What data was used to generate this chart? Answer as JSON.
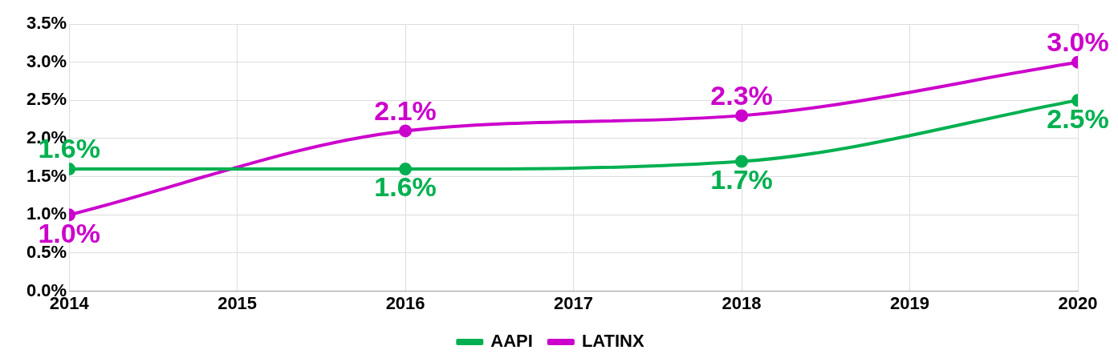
{
  "chart_data": {
    "type": "line",
    "x": [
      2014,
      2016,
      2018,
      2020
    ],
    "xlim": [
      2014,
      2020
    ],
    "xticks": [
      2014,
      2015,
      2016,
      2017,
      2018,
      2019,
      2020
    ],
    "ylim": [
      0,
      3.5
    ],
    "yticks": [
      {
        "value": 0,
        "label": "0.0%"
      },
      {
        "value": 0.5,
        "label": "0.5%"
      },
      {
        "value": 1,
        "label": "1.0%"
      },
      {
        "value": 1.5,
        "label": "1.5%"
      },
      {
        "value": 2,
        "label": "2.0%"
      },
      {
        "value": 2.5,
        "label": "2.5%"
      },
      {
        "value": 3,
        "label": "3.0%"
      },
      {
        "value": 3.5,
        "label": "3.5%"
      }
    ],
    "series": [
      {
        "name": "AAPI",
        "color": "#00b050",
        "values": [
          1.6,
          1.6,
          1.7,
          2.5
        ],
        "value_labels": [
          "1.6%",
          "1.6%",
          "1.7%",
          "2.5%"
        ]
      },
      {
        "name": "LATINX",
        "color": "#cc00cc",
        "values": [
          1.0,
          2.1,
          2.3,
          3.0
        ],
        "value_labels": [
          "1.0%",
          "2.1%",
          "2.3%",
          "3.0%"
        ]
      }
    ],
    "grid": true,
    "legend": "bottom",
    "marker": "circle",
    "line_style": "solid"
  }
}
